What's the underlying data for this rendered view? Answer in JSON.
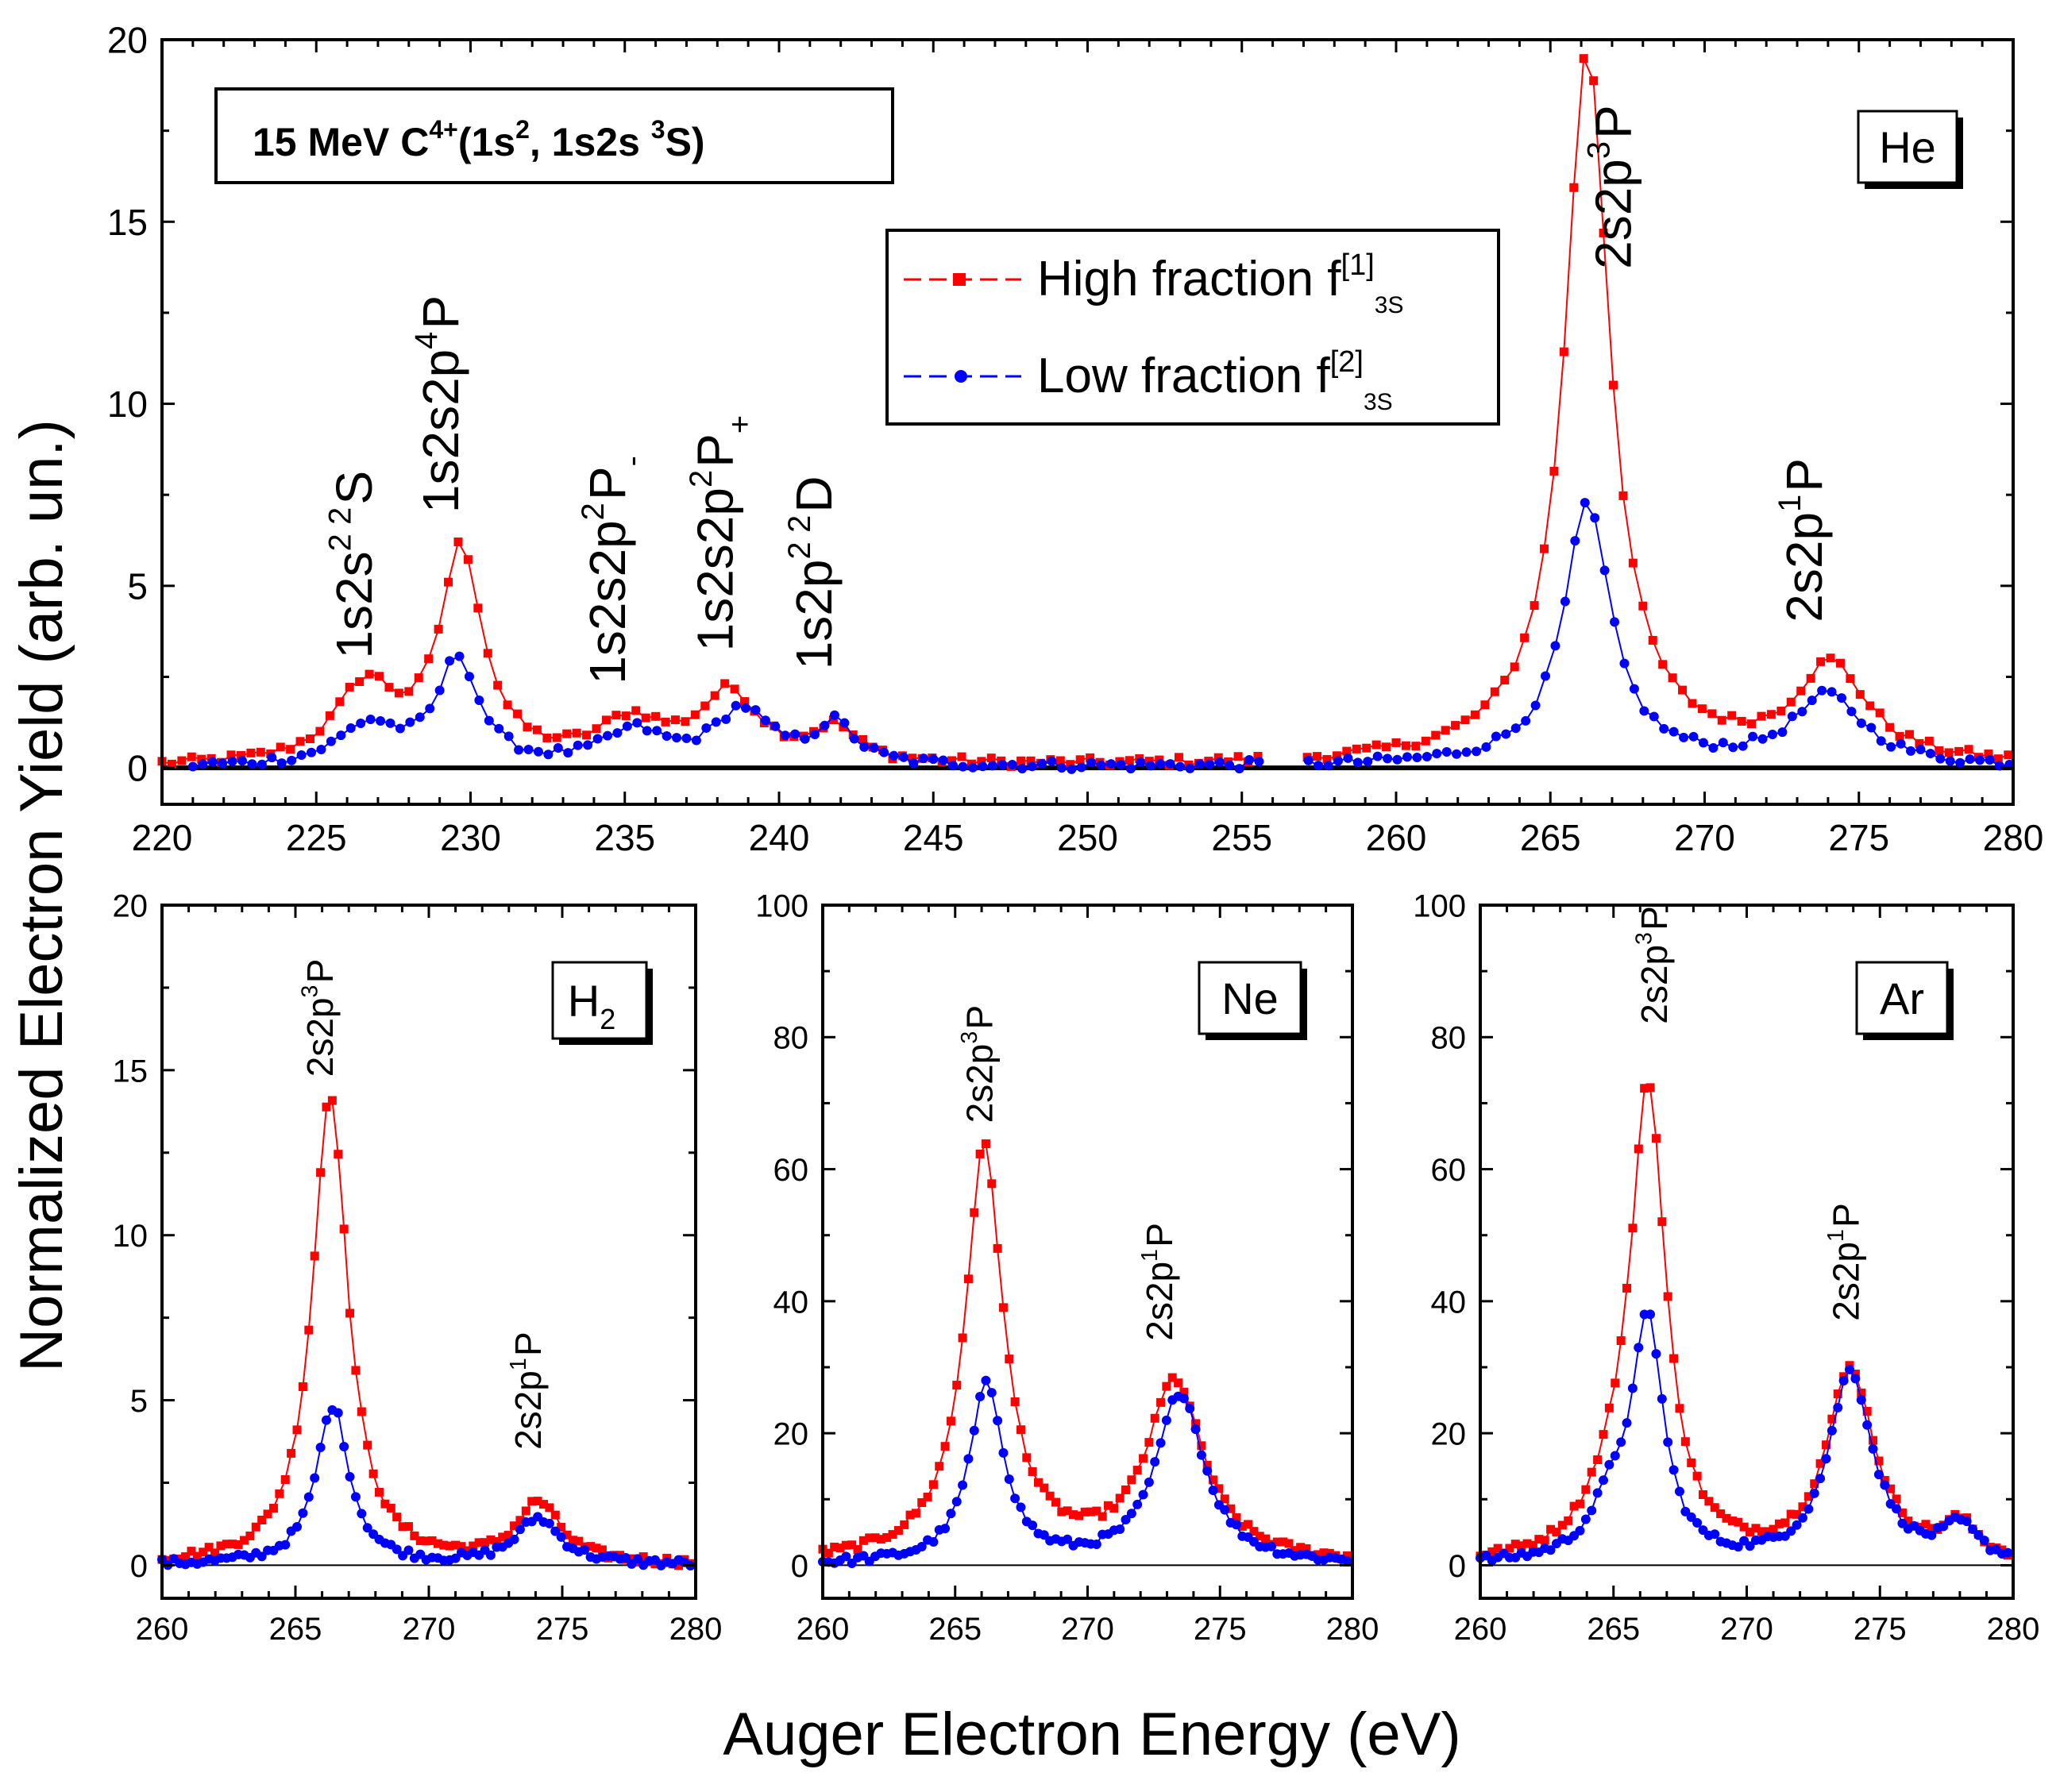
{
  "figure": {
    "ylabel": "Normalized Electron Yield (arb. un.)",
    "xlabel": "Auger Electron Energy (eV)",
    "title_box": {
      "prefix": "15 MeV C",
      "charge": "4+",
      "config_a": "(1s",
      "sup_a": "2",
      "config_b": ", 1s2s ",
      "sup_b": "3",
      "config_c": "S)"
    },
    "legend": [
      {
        "label": "High fraction  f",
        "sup": "[1]",
        "sub": "3S",
        "color": "#ff0000",
        "marker": "square"
      },
      {
        "label": "Low fraction  f",
        "sup": "[2]",
        "sub": "3S",
        "color": "#0000ff",
        "marker": "circle"
      }
    ],
    "colors": {
      "high": "#ff0000",
      "low": "#0000ff",
      "axis": "#000000"
    }
  },
  "chart_data": [
    {
      "id": "he",
      "type": "scatter",
      "target": "He",
      "xlim": [
        220,
        280
      ],
      "ylim": [
        -1,
        20
      ],
      "xticks": [
        220,
        225,
        230,
        235,
        240,
        245,
        250,
        255,
        260,
        265,
        270,
        275,
        280
      ],
      "yticks": [
        0,
        5,
        10,
        15,
        20
      ],
      "gap": [
        255.6,
        256.9
      ],
      "peaks_high": [
        [
          0,
          220,
          5
        ],
        [
          2.1,
          226.6,
          1.2
        ],
        [
          5.8,
          229.7,
          0.85
        ],
        [
          1.1,
          235.2,
          1.3
        ],
        [
          1.9,
          238.4,
          1.2
        ],
        [
          0.9,
          241.8,
          0.9
        ],
        [
          18.8,
          266.2,
          0.85
        ],
        [
          1.0,
          266.2,
          3.2
        ],
        [
          2.6,
          274.1,
          1.4
        ]
      ],
      "peaks_low": [
        [
          1.1,
          226.7,
          1.2
        ],
        [
          2.9,
          229.6,
          0.8
        ],
        [
          0.9,
          235.3,
          1.2
        ],
        [
          1.5,
          238.8,
          1.1
        ],
        [
          1.1,
          241.8,
          0.8
        ],
        [
          6.9,
          266.2,
          0.9
        ],
        [
          0.3,
          266.2,
          3.0
        ],
        [
          1.9,
          274.0,
          1.4
        ]
      ],
      "high_range": [
        220,
        280
      ],
      "low_range": [
        221,
        280
      ],
      "labels": [
        {
          "text": "1s2s",
          "sup1": "2",
          "sup2": "2",
          "tail": "S",
          "x": 226.8,
          "y": 3.0
        },
        {
          "text": "1s2s2p",
          "sup1": "4",
          "tail": "P",
          "x": 229.6,
          "y": 7.0
        },
        {
          "text": "1s2s2p",
          "sup1": "2",
          "tail": "P",
          "sub": "-",
          "x": 235.0,
          "y": 2.3
        },
        {
          "text": "1s2s2p",
          "sup1": "2",
          "tail": "P",
          "sub": "+",
          "x": 238.5,
          "y": 3.2
        },
        {
          "text": "1s2p",
          "sup1": "2",
          "sup2": "2",
          "tail": "D",
          "x": 241.7,
          "y": 2.7
        },
        {
          "text": "2s2p",
          "sup1": "3",
          "tail": "P",
          "x": 267.6,
          "y": 13.7
        },
        {
          "text": "2s2p",
          "sup1": "1",
          "tail": "P",
          "x": 273.8,
          "y": 4.0
        }
      ]
    },
    {
      "id": "h2",
      "type": "scatter",
      "target": "H",
      "target_sub": "2",
      "xlim": [
        260,
        280
      ],
      "ylim": [
        -1,
        20
      ],
      "xticks": [
        260,
        265,
        270,
        275,
        280
      ],
      "yticks": [
        0,
        5,
        10,
        15,
        20
      ],
      "peaks_high": [
        [
          14.3,
          266.3,
          0.8
        ],
        [
          1.8,
          274.1,
          1.0
        ]
      ],
      "peaks_low": [
        [
          4.8,
          266.4,
          0.75
        ],
        [
          1.4,
          274.1,
          1.0
        ]
      ],
      "high_range": [
        260,
        280
      ],
      "low_range": [
        260,
        280
      ],
      "labels": [
        {
          "text": "2s2p",
          "sup1": "3",
          "tail": "P",
          "x": 266.4,
          "y": 14.8
        },
        {
          "text": "2s2p",
          "sup1": "1",
          "tail": "P",
          "x": 274.2,
          "y": 3.5
        }
      ]
    },
    {
      "id": "ne",
      "type": "scatter",
      "target": "Ne",
      "xlim": [
        260,
        280
      ],
      "ylim": [
        -5,
        100
      ],
      "xticks": [
        260,
        265,
        270,
        275,
        280
      ],
      "yticks": [
        0,
        20,
        40,
        60,
        80,
        100
      ],
      "peaks_high": [
        [
          60,
          266.1,
          0.85
        ],
        [
          3,
          266.1,
          3.0
        ],
        [
          27,
          273.3,
          1.3
        ]
      ],
      "peaks_low": [
        [
          27,
          266.2,
          0.8
        ],
        [
          26,
          273.5,
          1.1
        ]
      ],
      "high_range": [
        260,
        280
      ],
      "low_range": [
        260,
        280
      ],
      "labels": [
        {
          "text": "2s2p",
          "sup1": "3",
          "tail": "P",
          "x": 266.4,
          "y": 67
        },
        {
          "text": "2s2p",
          "sup1": "1",
          "tail": "P",
          "x": 273.2,
          "y": 34
        }
      ]
    },
    {
      "id": "ar",
      "type": "scatter",
      "target": "Ar",
      "xlim": [
        260,
        280
      ],
      "ylim": [
        -5,
        100
      ],
      "xticks": [
        260,
        265,
        270,
        275,
        280
      ],
      "yticks": [
        0,
        20,
        40,
        60,
        80,
        100
      ],
      "peaks_high": [
        [
          70,
          266.3,
          0.8
        ],
        [
          7,
          265.0,
          1.2
        ],
        [
          29,
          273.9,
          1.1
        ],
        [
          5,
          278.0,
          0.8
        ]
      ],
      "peaks_low": [
        [
          35,
          266.3,
          0.7
        ],
        [
          8,
          265.0,
          1.0
        ],
        [
          29,
          273.9,
          1.0
        ],
        [
          5,
          278.0,
          0.8
        ]
      ],
      "high_range": [
        260,
        280
      ],
      "low_range": [
        260,
        280
      ],
      "labels": [
        {
          "text": "2s2p",
          "sup1": "3",
          "tail": "P",
          "x": 267.0,
          "y": 82
        },
        {
          "text": "2s2p",
          "sup1": "1",
          "tail": "P",
          "x": 274.2,
          "y": 37
        }
      ]
    }
  ]
}
